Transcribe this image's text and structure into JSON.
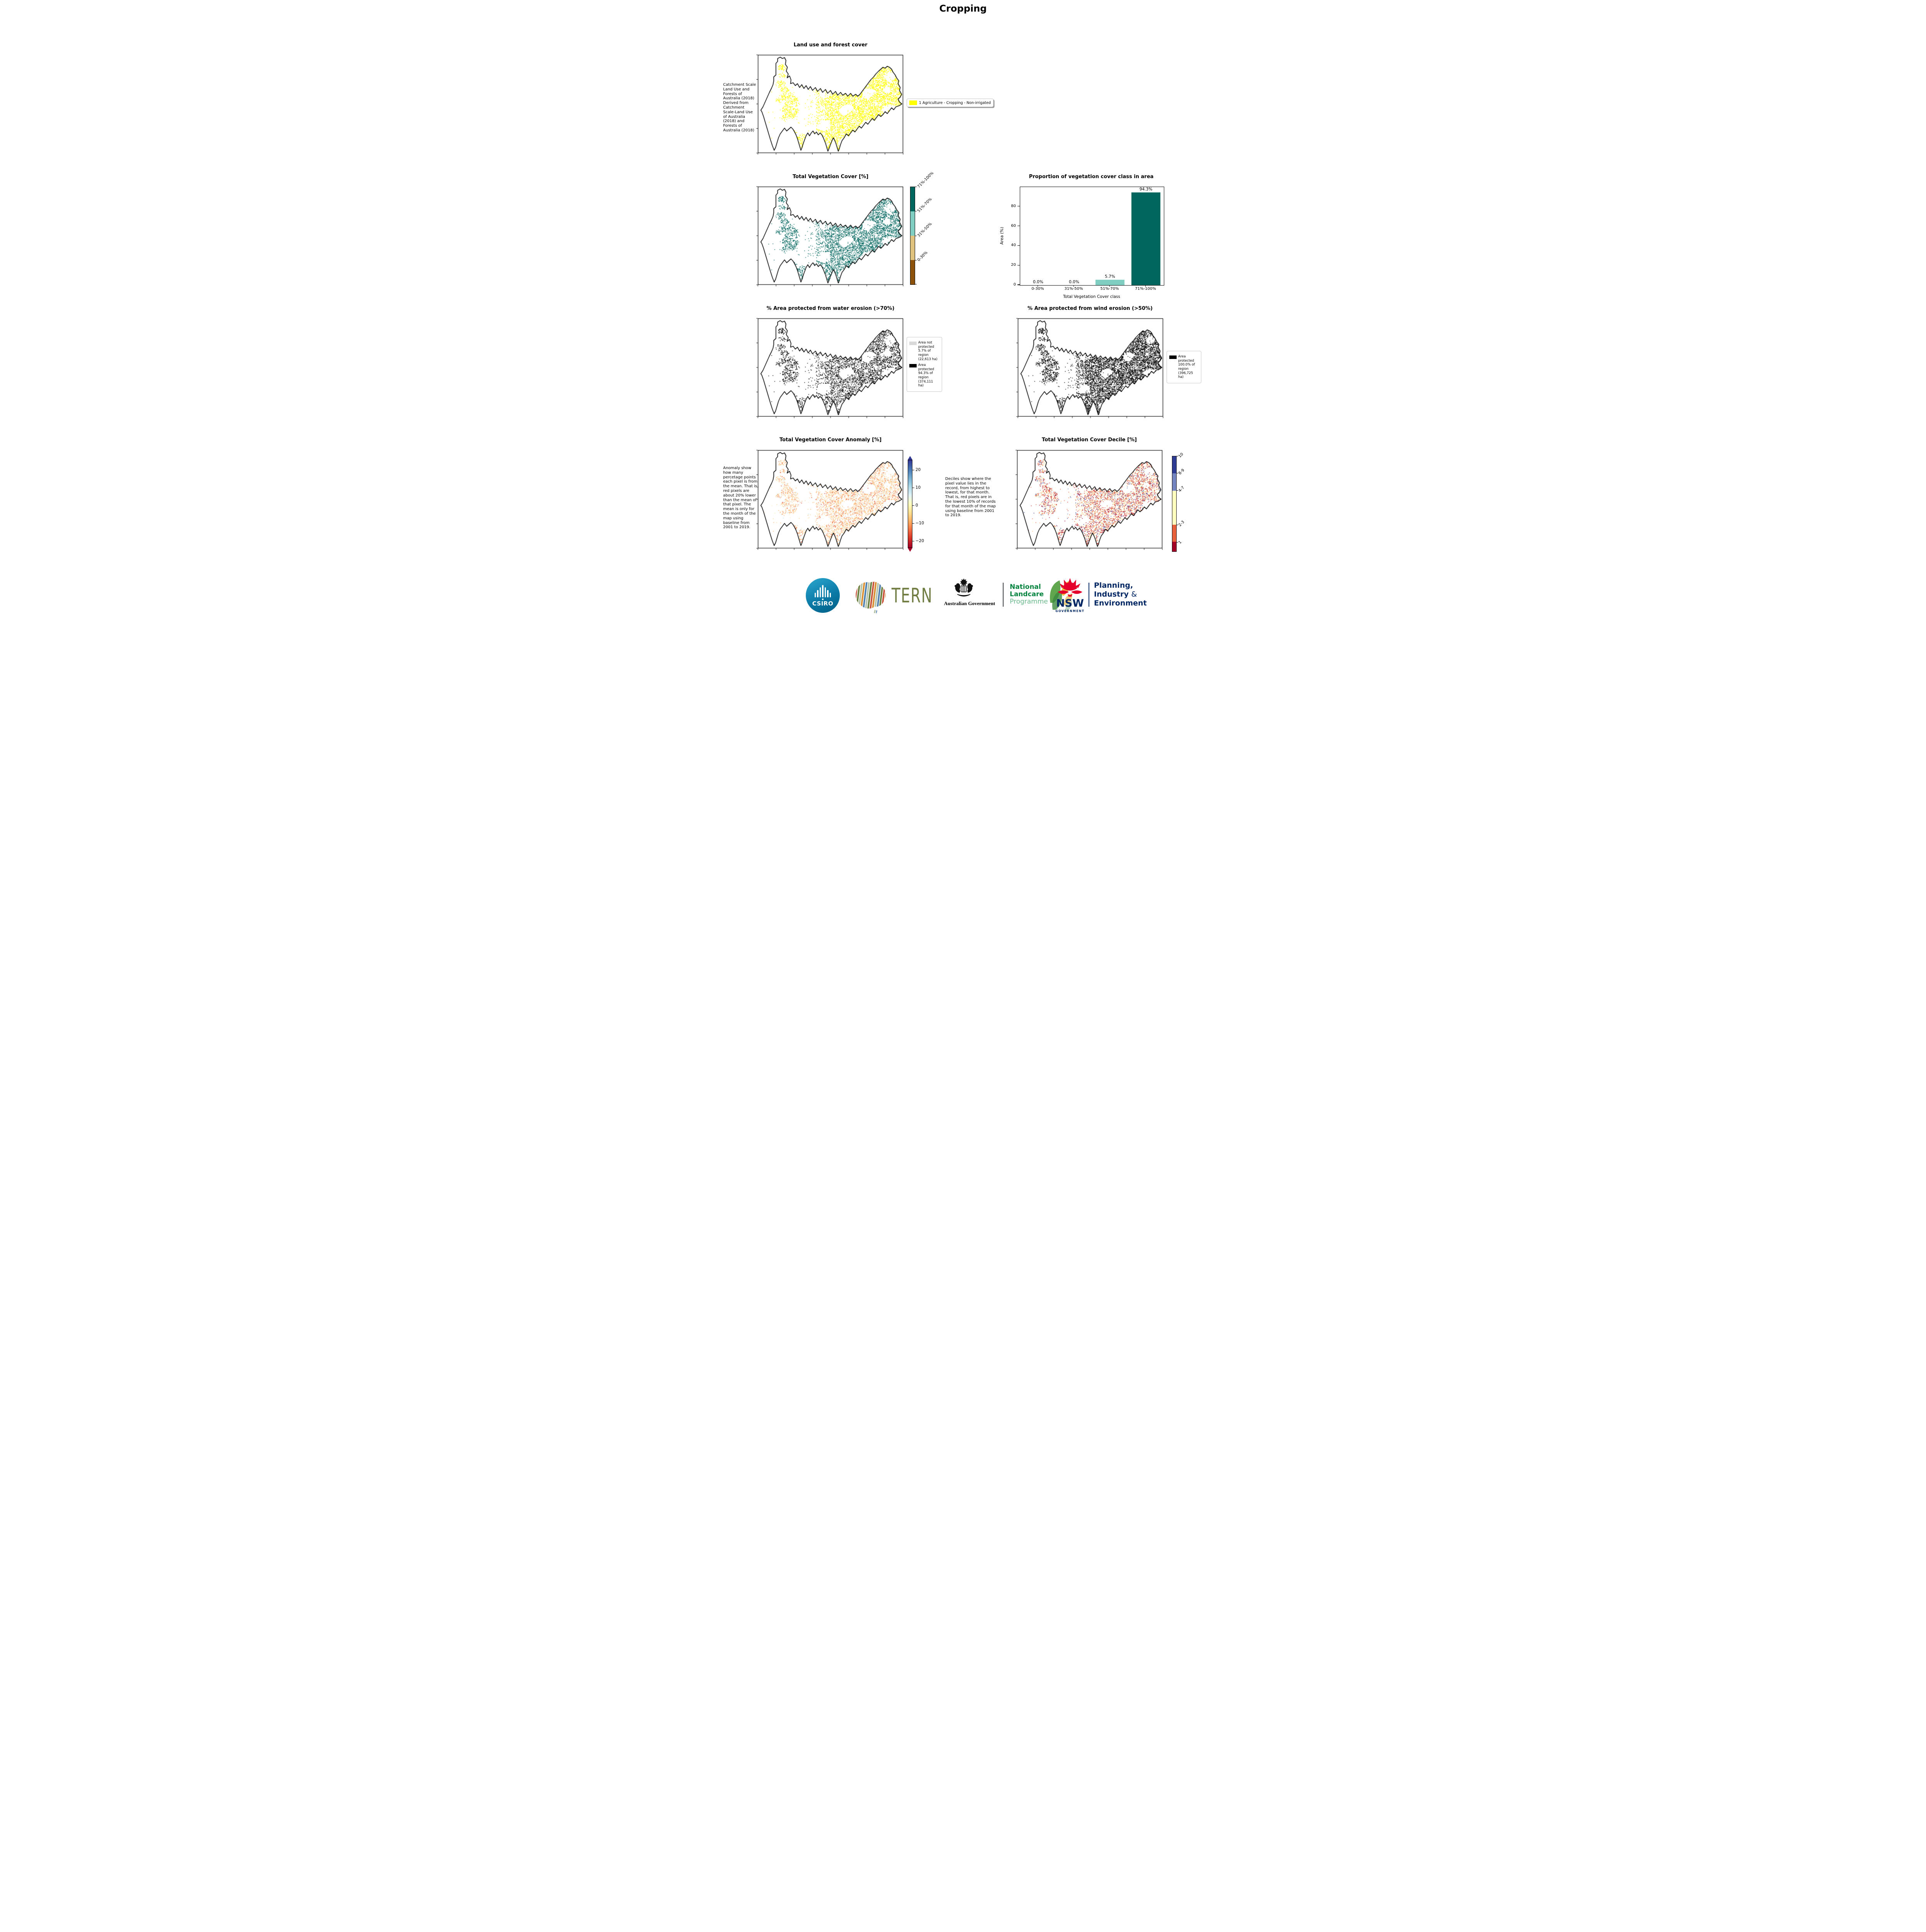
{
  "page": {
    "title": "Cropping"
  },
  "landuse": {
    "title": "Land use and forest cover",
    "note": " Catchment Scale Land Use and Forests of Australia (2018) Derived from Catchment Scale-Land Use of Australia (2018) and Forests of Australia (2018)",
    "legend_label": "1 Agriculture - Cropping - Non-irrigated",
    "map_color": "#ffff00"
  },
  "vegcover": {
    "title": "Total Vegetation Cover [%]",
    "map_color": "#01665e",
    "colorbar": {
      "labels": [
        "71%-100%",
        "51%-70%",
        "31%-50%",
        "0-30%"
      ],
      "colors": [
        "#01665e",
        "#80cdc1",
        "#dfc27d",
        "#8c510a"
      ]
    }
  },
  "chart_data": {
    "type": "bar",
    "title": "Proportion of vegetation cover class in area",
    "categories": [
      "0-30%",
      "31%-50%",
      "51%-70%",
      "71%-100%"
    ],
    "values": [
      0.0,
      0.0,
      5.7,
      94.3
    ],
    "value_labels": [
      "0.0%",
      "0.0%",
      "5.7%",
      "94.3%"
    ],
    "bar_colors": [
      "#8c510a",
      "#dfc27d",
      "#80cdc1",
      "#01665e"
    ],
    "xlabel": "Total Vegetation Cover class",
    "ylabel": "Area (%)",
    "ylim": [
      0,
      100
    ],
    "yticks": [
      0,
      20,
      40,
      60,
      80
    ],
    "grid": false,
    "legend_position": "none"
  },
  "water": {
    "title": "% Area protected from water erosion (>70%)",
    "map_color": "#000000",
    "legend": [
      {
        "label": "Area not protected 5.7% of region (22,613 ha)",
        "color": "#d9d9d9"
      },
      {
        "label": "Area protected 94.3% of region (374,111 ha)",
        "color": "#000000"
      }
    ]
  },
  "wind": {
    "title": "% Area protected from wind erosion (>50%)",
    "map_color": "#000000",
    "legend": [
      {
        "label": "Area protected 100.0% of region (396,725 ha)",
        "color": "#000000"
      }
    ]
  },
  "anomaly": {
    "title": "Total Vegetation Cover Anomaly [%]",
    "note": "Anomaly show how many percetage points each pixel is from the mean. That is, red pixels are about 20% lower than the mean of that pixel. The mean is only for the month of the map using baseline from 2001 to 2019.",
    "colorbar_ticks": [
      "20",
      "10",
      "0",
      "−10",
      "−20"
    ],
    "gradient": [
      "#313695",
      "#4575b4",
      "#74add1",
      "#abd9e9",
      "#e0f3f8",
      "#ffffbf",
      "#fee090",
      "#fdae61",
      "#f46d43",
      "#d73027",
      "#a50026"
    ],
    "map_palette": [
      [
        "#fde5c0",
        0.3
      ],
      [
        "#fdcf8e",
        0.26
      ],
      [
        "#fdae61",
        0.2
      ],
      [
        "#f5774e",
        0.1
      ],
      [
        "#d73027",
        0.05
      ],
      [
        "#bfe1ee",
        0.05
      ],
      [
        "#fee9b0",
        0.04
      ]
    ]
  },
  "decile": {
    "title": "Total Vegetation Cover Decile [%]",
    "note": "Deciles show where the pixel value lies in the record, from highest to lowest, for that month. That is, red pixels are in the lowest 10% of records for that month of the map using baseline from 2001 to 2019.",
    "colorbar": {
      "labels": [
        "10",
        "8-9",
        "4-7",
        "2-3",
        "1"
      ],
      "colors": [
        "#2e3d93",
        "#7485bf",
        "#ffffbf",
        "#e8613c",
        "#a50026"
      ]
    },
    "map_palette": [
      [
        "#a50026",
        0.17
      ],
      [
        "#d73027",
        0.08
      ],
      [
        "#e8613c",
        0.25
      ],
      [
        "#fdae61",
        0.1
      ],
      [
        "#ffffbf",
        0.28
      ],
      [
        "#7485bf",
        0.08
      ],
      [
        "#2e3d93",
        0.04
      ]
    ]
  },
  "footer": {
    "csiro": "CSIRO",
    "tern": "TERN",
    "ausgov": "Australian Government",
    "landcare": {
      "line1": "National",
      "line2": "Landcare",
      "line3": "Programme"
    },
    "nsw": {
      "name": "NSW",
      "sub": "GOVERNMENT"
    },
    "dept": {
      "line1": "Planning,",
      "line2": "Industry",
      "amp": "&",
      "line3": "Environment"
    },
    "colors": {
      "landcare_green": "#00843d",
      "nsw_navy": "#002664",
      "waratah_red": "#e4002b",
      "tern_olive": "#6f7d42",
      "csiro_teal": "#0b7aa6"
    }
  }
}
